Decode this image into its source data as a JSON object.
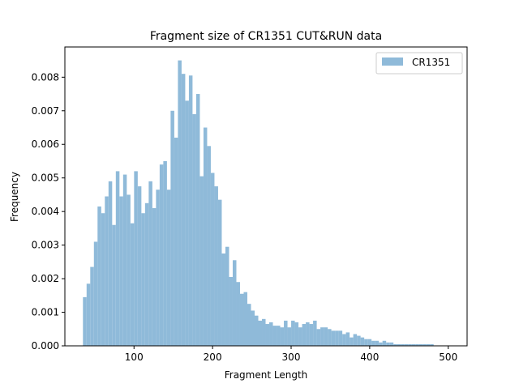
{
  "chart_data": {
    "type": "bar",
    "title": "Fragment size of CR1351 CUT&RUN data",
    "xlabel": "Fragment Length",
    "ylabel": "Frequency",
    "xlim": [
      12,
      524
    ],
    "ylim": [
      0,
      0.0089
    ],
    "xticks": [
      100,
      200,
      300,
      400,
      500
    ],
    "xtick_labels": [
      "100",
      "200",
      "300",
      "400",
      "500"
    ],
    "yticks": [
      0,
      0.001,
      0.002,
      0.003,
      0.004,
      0.005,
      0.006,
      0.007,
      0.008
    ],
    "ytick_labels": [
      "0.000",
      "0.001",
      "0.002",
      "0.003",
      "0.004",
      "0.005",
      "0.006",
      "0.007",
      "0.008"
    ],
    "legend_position": "top-right",
    "grid": false,
    "series": [
      {
        "name": "CR1351",
        "color": "#8fbad9",
        "bin_start": 35,
        "bin_width": 4.65,
        "values": [
          0.00145,
          0.00185,
          0.00235,
          0.0031,
          0.00415,
          0.00395,
          0.00445,
          0.0049,
          0.0036,
          0.0052,
          0.00445,
          0.0051,
          0.0045,
          0.00365,
          0.0052,
          0.00475,
          0.00395,
          0.00425,
          0.0049,
          0.0041,
          0.00465,
          0.0054,
          0.0055,
          0.00465,
          0.007,
          0.0062,
          0.0085,
          0.0081,
          0.0073,
          0.00805,
          0.0069,
          0.0075,
          0.00505,
          0.0065,
          0.00595,
          0.00515,
          0.00475,
          0.00435,
          0.00275,
          0.00295,
          0.00205,
          0.00255,
          0.0019,
          0.00155,
          0.0016,
          0.00125,
          0.00105,
          0.0009,
          0.00075,
          0.0008,
          0.00065,
          0.0007,
          0.0006,
          0.0006,
          0.00055,
          0.00075,
          0.00055,
          0.00075,
          0.0007,
          0.00055,
          0.00065,
          0.0007,
          0.00065,
          0.00075,
          0.0005,
          0.00055,
          0.00055,
          0.0005,
          0.00045,
          0.00045,
          0.00045,
          0.00035,
          0.0004,
          0.00025,
          0.00035,
          0.0003,
          0.00025,
          0.0002,
          0.0002,
          0.00015,
          0.00015,
          0.0001,
          0.00015,
          0.0001,
          0.0001,
          5e-05,
          5e-05,
          5e-05,
          5e-05,
          5e-05,
          5e-05,
          5e-05,
          5e-05,
          5e-05,
          5e-05,
          5e-05
        ]
      }
    ]
  }
}
